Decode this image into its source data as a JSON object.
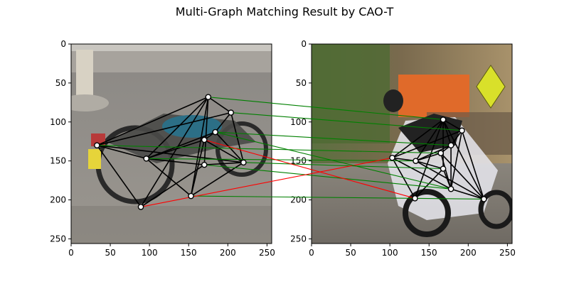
{
  "chart_data": {
    "type": "scatter",
    "title": "Multi-Graph Matching Result by CAO-T",
    "panels": [
      {
        "name": "left",
        "xlim": [
          0,
          256
        ],
        "ylim": [
          256,
          0
        ],
        "xticks": [
          0,
          50,
          100,
          150,
          200,
          250
        ],
        "yticks": [
          0,
          50,
          100,
          150,
          200,
          250
        ],
        "image_description": "street scene with a parked vintage motorcycle",
        "points": [
          {
            "x": 175,
            "y": 68
          },
          {
            "x": 204,
            "y": 88
          },
          {
            "x": 184,
            "y": 113
          },
          {
            "x": 33,
            "y": 130
          },
          {
            "x": 96,
            "y": 147
          },
          {
            "x": 170,
            "y": 123
          },
          {
            "x": 170,
            "y": 155
          },
          {
            "x": 220,
            "y": 152
          },
          {
            "x": 153,
            "y": 195
          },
          {
            "x": 89,
            "y": 209
          }
        ],
        "edges": [
          [
            0,
            1
          ],
          [
            0,
            3
          ],
          [
            0,
            4
          ],
          [
            0,
            6
          ],
          [
            0,
            8
          ],
          [
            0,
            9
          ],
          [
            1,
            7
          ],
          [
            1,
            3
          ],
          [
            2,
            7
          ],
          [
            2,
            5
          ],
          [
            2,
            4
          ],
          [
            3,
            4
          ],
          [
            3,
            9
          ],
          [
            3,
            7
          ],
          [
            4,
            6
          ],
          [
            4,
            8
          ],
          [
            4,
            5
          ],
          [
            5,
            8
          ],
          [
            5,
            7
          ],
          [
            6,
            7
          ],
          [
            6,
            9
          ],
          [
            7,
            8
          ],
          [
            1,
            2
          ]
        ]
      },
      {
        "name": "right",
        "xlim": [
          0,
          256
        ],
        "ylim": [
          256,
          0
        ],
        "xticks": [
          0,
          50,
          100,
          150,
          200,
          250
        ],
        "yticks": [
          0,
          50,
          100,
          150,
          200,
          250
        ],
        "image_description": "sport motorcycle racing on a road with spectators and a yellow sign",
        "points": [
          {
            "x": 168,
            "y": 97
          },
          {
            "x": 192,
            "y": 111
          },
          {
            "x": 178,
            "y": 130
          },
          {
            "x": 103,
            "y": 146
          },
          {
            "x": 133,
            "y": 150
          },
          {
            "x": 165,
            "y": 140
          },
          {
            "x": 168,
            "y": 160
          },
          {
            "x": 178,
            "y": 186
          },
          {
            "x": 220,
            "y": 199
          },
          {
            "x": 132,
            "y": 198
          }
        ],
        "edges": [
          [
            0,
            1
          ],
          [
            0,
            3
          ],
          [
            0,
            4
          ],
          [
            0,
            6
          ],
          [
            0,
            8
          ],
          [
            0,
            9
          ],
          [
            1,
            7
          ],
          [
            1,
            3
          ],
          [
            2,
            7
          ],
          [
            2,
            5
          ],
          [
            2,
            4
          ],
          [
            3,
            4
          ],
          [
            3,
            9
          ],
          [
            3,
            7
          ],
          [
            4,
            6
          ],
          [
            4,
            8
          ],
          [
            4,
            5
          ],
          [
            5,
            8
          ],
          [
            5,
            7
          ],
          [
            6,
            7
          ],
          [
            6,
            9
          ],
          [
            7,
            8
          ],
          [
            1,
            2
          ],
          [
            0,
            2
          ],
          [
            1,
            8
          ]
        ]
      }
    ],
    "matches": [
      {
        "from": 0,
        "to": 0,
        "correct": true
      },
      {
        "from": 1,
        "to": 1,
        "correct": true
      },
      {
        "from": 2,
        "to": 2,
        "correct": true
      },
      {
        "from": 3,
        "to": 5,
        "correct": true
      },
      {
        "from": 4,
        "to": 4,
        "correct": true
      },
      {
        "from": 7,
        "to": 6,
        "correct": true
      },
      {
        "from": 6,
        "to": 7,
        "correct": true
      },
      {
        "from": 8,
        "to": 8,
        "correct": true
      },
      {
        "from": 5,
        "to": 9,
        "correct": false
      },
      {
        "from": 9,
        "to": 3,
        "correct": false
      },
      {
        "from": 2,
        "to": 7,
        "correct": true
      }
    ],
    "colors": {
      "correct_match": "#008000",
      "wrong_match": "#ff0000",
      "graph_edge": "#000000",
      "node_fill": "#ffffff",
      "node_stroke": "#000000"
    }
  }
}
